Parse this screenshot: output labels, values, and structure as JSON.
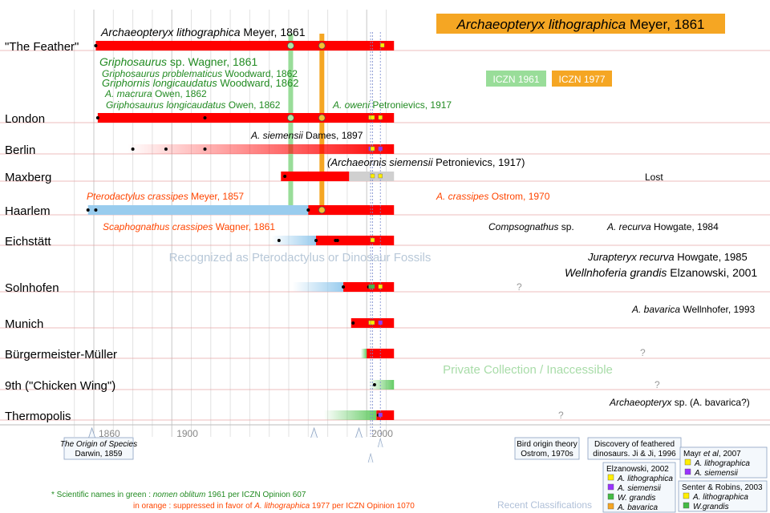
{
  "chart_data": {
    "type": "timeline",
    "axis": {
      "min_year": 1847,
      "max_year": 2014,
      "ticks": [
        1860,
        1900,
        2000
      ]
    },
    "rows": [
      {
        "name": "\"The Feather\"",
        "segments": [
          {
            "from": 1861,
            "to": 2014,
            "color": "#ff0000"
          }
        ],
        "dots": [
          1861,
          1961,
          1977
        ]
      },
      {
        "name": "London",
        "segments": [
          {
            "from": 1862,
            "to": 2014,
            "color": "#ff0000"
          }
        ],
        "dots": [
          1862,
          1917,
          1961,
          1977
        ]
      },
      {
        "name": "Berlin",
        "segments": [
          {
            "from": 1877,
            "to": 2014,
            "color": "#ff0000"
          }
        ],
        "dots": [
          1880,
          1897,
          1917
        ]
      },
      {
        "name": "Maxberg",
        "segments": [
          {
            "from": 1956,
            "to": 1991,
            "color": "#ff0000"
          },
          {
            "from": 1991,
            "to": 2014,
            "color": "#d0d0d0"
          }
        ],
        "dots": [
          1958
        ],
        "label": "Lost"
      },
      {
        "name": "Haarlem",
        "segments": [
          {
            "from": 1857,
            "to": 1970,
            "color": "#99ccee"
          },
          {
            "from": 1970,
            "to": 2014,
            "color": "#ff0000"
          }
        ],
        "dots": [
          1857,
          1861,
          1970,
          1977
        ]
      },
      {
        "name": "Eichstätt",
        "segments": [
          {
            "from": 1951,
            "to": 1974,
            "color": "#99ccee"
          },
          {
            "from": 1974,
            "to": 2014,
            "color": "#ff0000"
          }
        ],
        "dots": [
          1955,
          1974,
          1984,
          1985
        ]
      },
      {
        "name": "Solnhofen",
        "segments": [
          {
            "from": 1962,
            "to": 1988,
            "color": "#99ccee"
          },
          {
            "from": 1988,
            "to": 2014,
            "color": "#ff0000"
          }
        ],
        "dots": [
          1988,
          2001
        ]
      },
      {
        "name": "Munich",
        "segments": [
          {
            "from": 1992,
            "to": 2014,
            "color": "#ff0000"
          }
        ],
        "dots": [
          1993
        ]
      },
      {
        "name": "Bürgermeister-Müller",
        "segments": [
          {
            "from": 1997,
            "to": 2000,
            "color": "#66cc66"
          },
          {
            "from": 2000,
            "to": 2014,
            "color": "#ff0000"
          }
        ]
      },
      {
        "name": "9th (\"Chicken Wing\")",
        "segments": [
          {
            "from": 2001,
            "to": 2014,
            "color": "#66cc66"
          }
        ],
        "dots": [
          2004
        ]
      },
      {
        "name": "Thermopolis",
        "segments": [
          {
            "from": 1978,
            "to": 2005,
            "color": "#66cc66"
          },
          {
            "from": 2005,
            "to": 2014,
            "color": "#ff0000"
          }
        ],
        "dots": [
          2006
        ]
      }
    ],
    "vertical_markers": [
      {
        "label": "ICZN 1961",
        "year": 1961,
        "color": "#99dd99"
      },
      {
        "label": "ICZN 1977",
        "year": 1977,
        "color": "#f5a623"
      }
    ],
    "title_box": {
      "italic": "Archaeopteryx lithographica",
      "rest": " Meyer, 1861"
    },
    "region_labels": [
      "Recognized as Pterodactylus or Dinosaur Fossils",
      "Private Collection / Inaccessible"
    ],
    "question_marks": [
      "?",
      "?",
      "?",
      "?"
    ],
    "annotations": [
      {
        "italic": "Archaeopteryx lithographica",
        "rest": " Meyer, 1861",
        "color": "#000000"
      },
      {
        "italic": "Griphosaurus",
        "rest": " sp. Wagner, 1861",
        "color": "#228b22"
      },
      {
        "italic": "Griphosaurus problematicus",
        "rest": " Woodward, 1862",
        "color": "#228b22"
      },
      {
        "italic": "Griphornis longicaudatus",
        "rest": " Woodward, 1862",
        "color": "#228b22"
      },
      {
        "italic": "A. macrura",
        "rest": " Owen, 1862",
        "color": "#228b22"
      },
      {
        "italic": "Griphosaurus longicaudatus",
        "rest": " Owen, 1862",
        "color": "#228b22"
      },
      {
        "italic": "A. oweni",
        "rest": " Petronievics, 1917",
        "color": "#228b22"
      },
      {
        "italic": "A. siemensii",
        "rest": " Dames, 1897",
        "color": "#000000"
      },
      {
        "italic": "(Archaeornis siemensii",
        "rest": " Petronievics, 1917)",
        "color": "#000000"
      },
      {
        "italic": "Pterodactylus crassipes",
        "rest": " Meyer, 1857",
        "color": "#ff4500"
      },
      {
        "italic": "Scaphognathus crassipes",
        "rest": " Wagner, 1861",
        "color": "#ff4500"
      },
      {
        "italic": "A. crassipes",
        "rest": " Ostrom, 1970",
        "color": "#ff4500"
      },
      {
        "italic": "Compsognathus",
        "rest": " sp.",
        "color": "#000000"
      },
      {
        "italic": "A. recurva",
        "rest": " Howgate, 1984",
        "color": "#000000"
      },
      {
        "italic": "Jurapteryx recurva",
        "rest": " Howgate, 1985",
        "color": "#000000"
      },
      {
        "italic": "Wellnhoferia grandis",
        "rest": " Elzanowski, 2001",
        "color": "#000000"
      },
      {
        "italic": "A. bavarica",
        "rest": " Wellnhofer, 1993",
        "color": "#000000"
      },
      {
        "italic": "Archaeopteryx",
        "rest": " sp. (A. bavarica?)",
        "color": "#000000"
      }
    ],
    "classification_marks": [
      {
        "row": "\"The Feather\"",
        "year": 2008,
        "color": "#ffee00"
      },
      {
        "row": "London",
        "year": 2002,
        "color": "#ffee00"
      },
      {
        "row": "London",
        "year": 2003,
        "color": "#ffee00"
      },
      {
        "row": "London",
        "year": 2007,
        "color": "#ffee00"
      },
      {
        "row": "Berlin",
        "year": 2002,
        "color": "#9933ff"
      },
      {
        "row": "Berlin",
        "year": 2003,
        "color": "#ffee00"
      },
      {
        "row": "Berlin",
        "year": 2007,
        "color": "#9933ff"
      },
      {
        "row": "Maxberg",
        "year": 2003,
        "color": "#ffee00"
      },
      {
        "row": "Maxberg",
        "year": 2007,
        "color": "#ffee00"
      },
      {
        "row": "Eichstätt",
        "year": 2003,
        "color": "#ffee00"
      },
      {
        "row": "Solnhofen",
        "year": 2002,
        "color": "#44bb44"
      },
      {
        "row": "Solnhofen",
        "year": 2003,
        "color": "#44bb44"
      },
      {
        "row": "Solnhofen",
        "year": 2007,
        "color": "#ffee00"
      },
      {
        "row": "Munich",
        "year": 2002,
        "color": "#ffee00"
      },
      {
        "row": "Munich",
        "year": 2003,
        "color": "#ffee00"
      },
      {
        "row": "Munich",
        "year": 2007,
        "color": "#9933ff"
      },
      {
        "row": "Thermopolis",
        "year": 2007,
        "color": "#9933ff"
      }
    ],
    "callouts": [
      {
        "lines": [
          {
            "i": "The Origin of Species",
            "r": ""
          },
          {
            "i": "",
            "r": "Darwin, 1859"
          }
        ]
      },
      {
        "lines": [
          {
            "i": "",
            "r": "Bird origin theory"
          },
          {
            "i": "",
            "r": "Ostrom, 1970s"
          }
        ]
      },
      {
        "lines": [
          {
            "i": "",
            "r": "Discovery of feathered"
          },
          {
            "i": "",
            "r": "dinosaurs. Ji & Ji, 1996"
          }
        ]
      }
    ],
    "classification_boxes": [
      {
        "title": "Elzanowski, 2002",
        "items": [
          {
            "color": "#ffee00",
            "text": "A. lithographica"
          },
          {
            "color": "#9933ff",
            "text": "A. siemensii"
          },
          {
            "color": "#44bb44",
            "text": "W. grandis"
          },
          {
            "color": "#f5a623",
            "text": "A. bavarica"
          }
        ]
      },
      {
        "title_i": "Mayr ",
        "title_it": "et al",
        "title_r": ", 2007",
        "items": [
          {
            "color": "#ffee00",
            "text": "A. lithographica"
          },
          {
            "color": "#9933ff",
            "text": "A. siemensii"
          }
        ]
      },
      {
        "title": "Senter & Robins, 2003",
        "items": [
          {
            "color": "#ffee00",
            "text": "A. lithographica"
          },
          {
            "color": "#44bb44",
            "text": "W.grandis"
          }
        ]
      }
    ],
    "recent_label": "Recent Classifications",
    "footnote": {
      "prefix": "* Scientific names",
      "green_label": "in green",
      "green_text_pre": ": ",
      "green_text_italic": "nomen oblitum",
      "green_text_post": " 1961 per ICZN Opinion 607",
      "orange_label": "in orange",
      "orange_text_pre": ": suppressed in favor of ",
      "orange_text_italic": "A. lithographica",
      "orange_text_post": " 1977 per ICZN Opinion 1070"
    }
  }
}
